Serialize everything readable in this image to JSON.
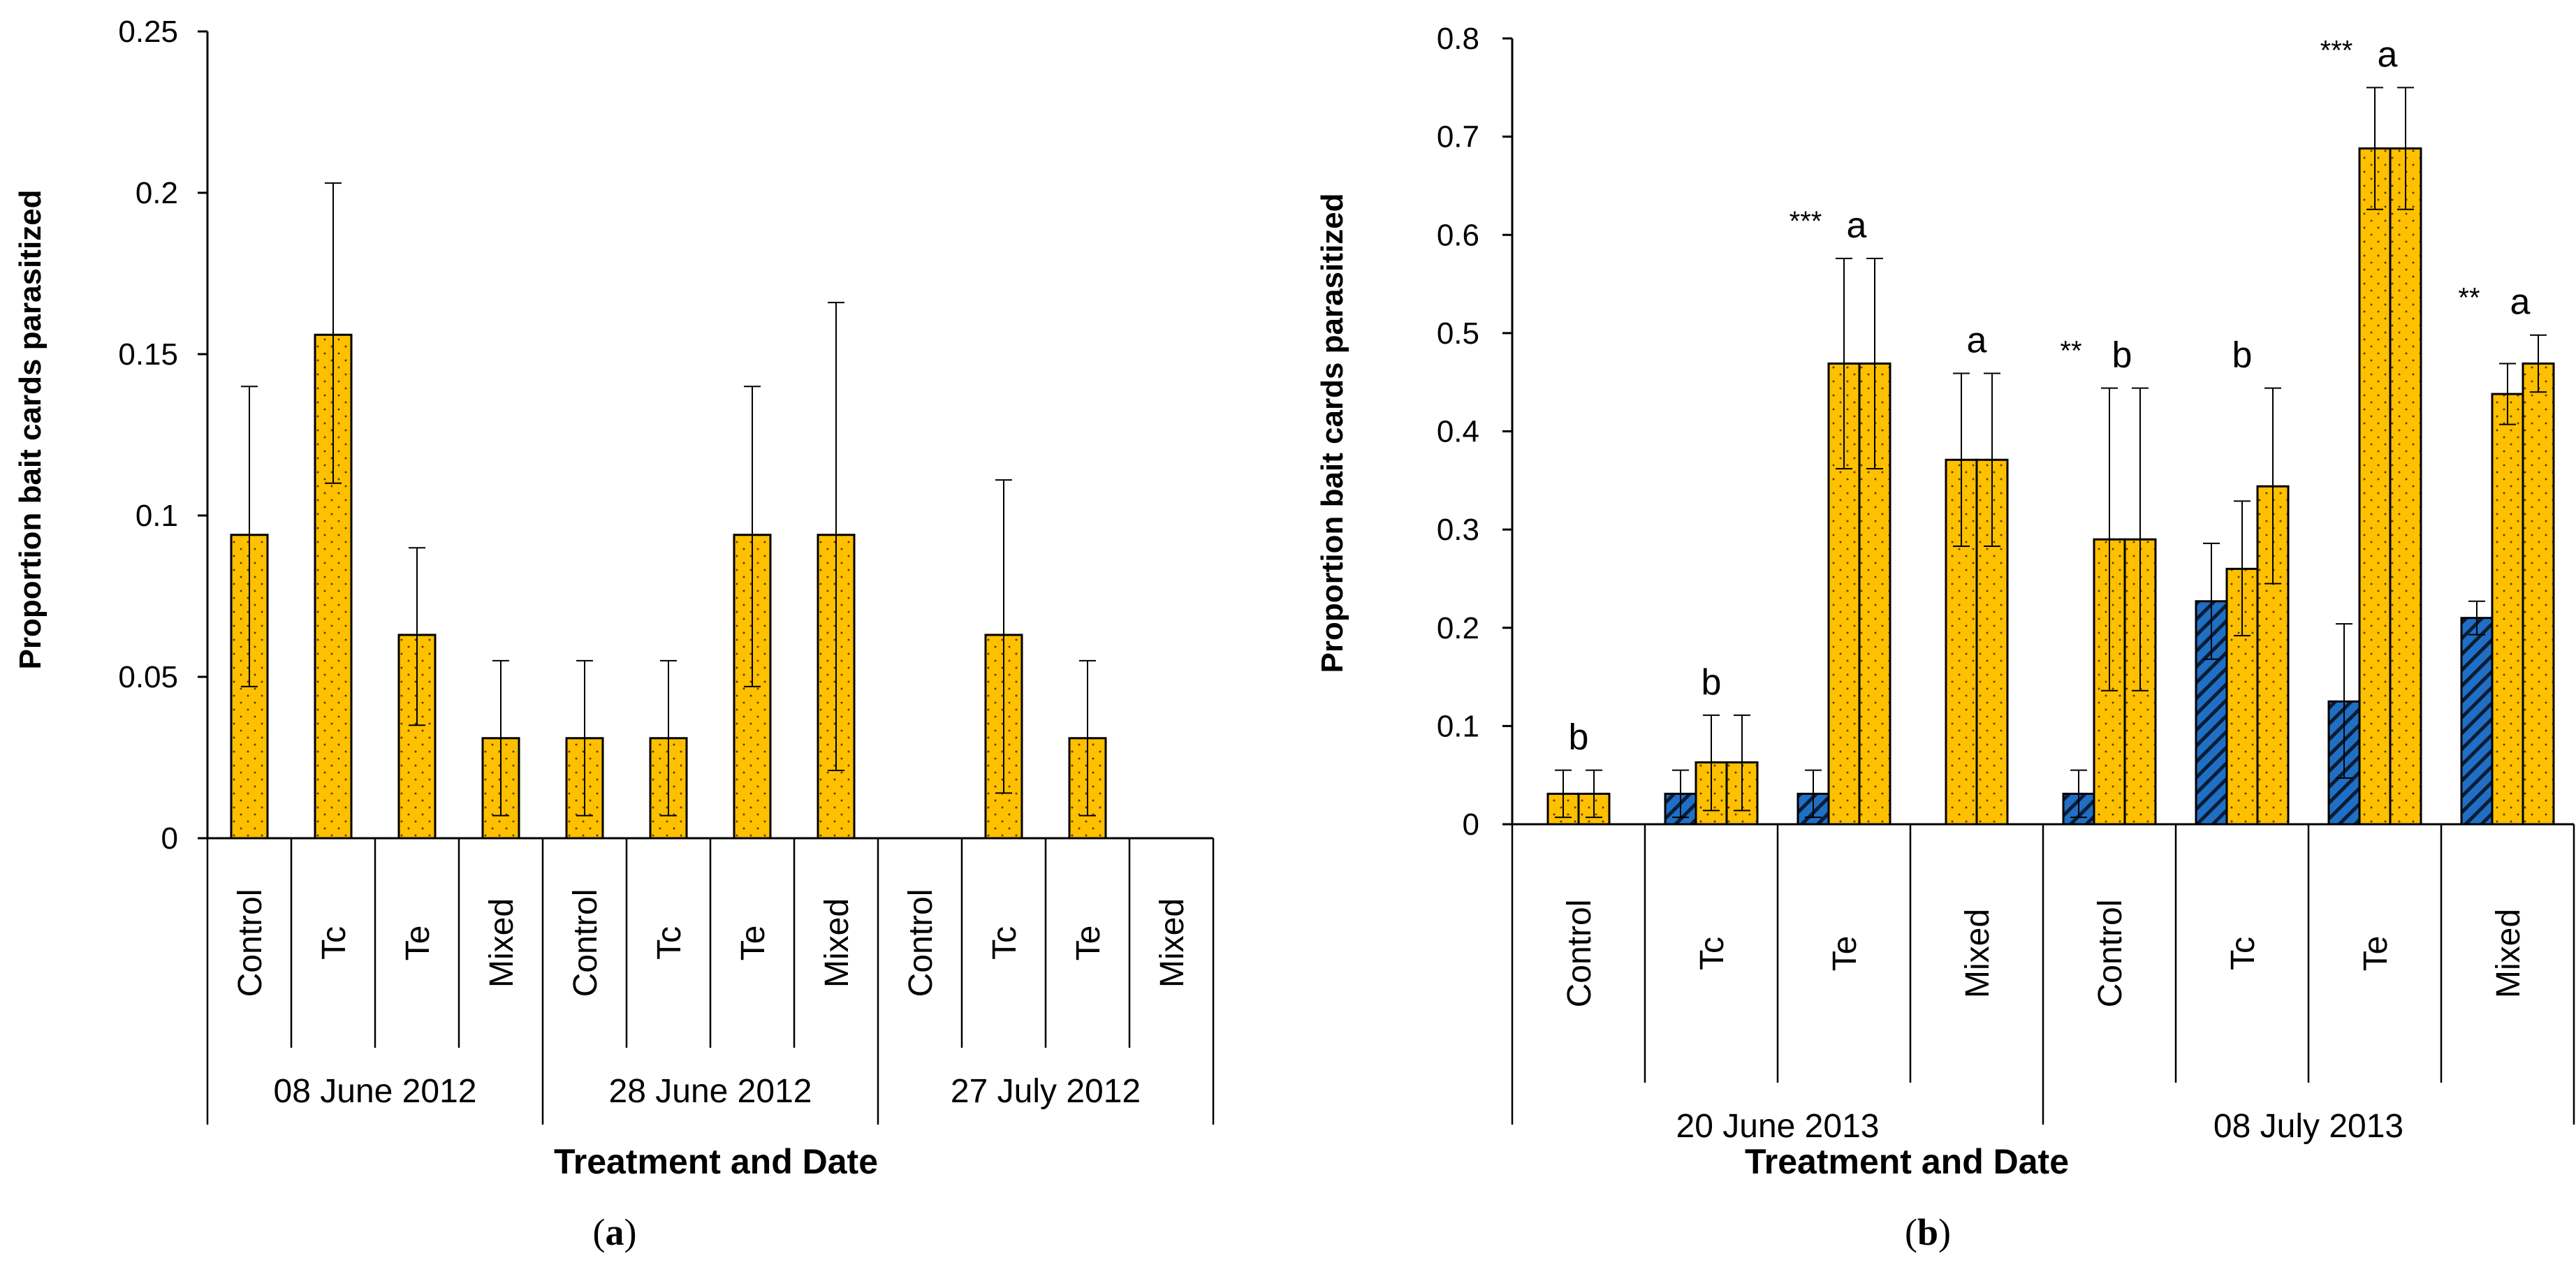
{
  "chart_data": [
    {
      "panel": "a",
      "type": "bar",
      "caption_letter": "a",
      "ylabel": "Proportion bait cards parasitized",
      "xlabel": "Treatment and Date",
      "ylim": [
        0,
        0.25
      ],
      "yticks": [
        "0",
        "0.05",
        "0.1",
        "0.15",
        "0.2",
        "0.25"
      ],
      "ytick_values": [
        0,
        0.05,
        0.1,
        0.15,
        0.2,
        0.25
      ],
      "groups": [
        {
          "label": "08 June 2012",
          "categories": [
            {
              "label": "Control",
              "bars": [
                {
                  "series": "orange",
                  "value": 0.094,
                  "err_low": 0.047,
                  "err_high": 0.14
                }
              ]
            },
            {
              "label": "Tc",
              "bars": [
                {
                  "series": "orange",
                  "value": 0.156,
                  "err_low": 0.11,
                  "err_high": 0.203
                }
              ]
            },
            {
              "label": "Te",
              "bars": [
                {
                  "series": "orange",
                  "value": 0.063,
                  "err_low": 0.035,
                  "err_high": 0.09
                }
              ]
            },
            {
              "label": "Mixed",
              "bars": [
                {
                  "series": "orange",
                  "value": 0.031,
                  "err_low": 0.007,
                  "err_high": 0.055
                }
              ]
            }
          ]
        },
        {
          "label": "28 June 2012",
          "categories": [
            {
              "label": "Control",
              "bars": [
                {
                  "series": "orange",
                  "value": 0.031,
                  "err_low": 0.007,
                  "err_high": 0.055
                }
              ]
            },
            {
              "label": "Tc",
              "bars": [
                {
                  "series": "orange",
                  "value": 0.031,
                  "err_low": 0.007,
                  "err_high": 0.055
                }
              ]
            },
            {
              "label": "Te",
              "bars": [
                {
                  "series": "orange",
                  "value": 0.094,
                  "err_low": 0.047,
                  "err_high": 0.14
                }
              ]
            },
            {
              "label": "Mixed",
              "bars": [
                {
                  "series": "orange",
                  "value": 0.094,
                  "err_low": 0.021,
                  "err_high": 0.166
                }
              ]
            }
          ]
        },
        {
          "label": "27 July 2012",
          "categories": [
            {
              "label": "Control",
              "bars": []
            },
            {
              "label": "Tc",
              "bars": [
                {
                  "series": "orange",
                  "value": 0.063,
                  "err_low": 0.014,
                  "err_high": 0.111
                }
              ]
            },
            {
              "label": "Te",
              "bars": [
                {
                  "series": "orange",
                  "value": 0.031,
                  "err_low": 0.007,
                  "err_high": 0.055
                }
              ]
            },
            {
              "label": "Mixed",
              "bars": []
            }
          ]
        }
      ]
    },
    {
      "panel": "b",
      "type": "bar",
      "caption_letter": "b",
      "ylabel": "Proportion bait cards  parasitized",
      "xlabel": "Treatment and Date",
      "ylim": [
        0,
        0.8
      ],
      "yticks": [
        "0",
        "0.1",
        "0.2",
        "0.3",
        "0.4",
        "0.5",
        "0.6",
        "0.7",
        "0.8"
      ],
      "ytick_values": [
        0,
        0.1,
        0.2,
        0.3,
        0.4,
        0.5,
        0.6,
        0.7,
        0.8
      ],
      "groups": [
        {
          "label": "20 June 2013",
          "categories": [
            {
              "label": "Control",
              "sig": "",
              "letter": "b",
              "bars": [
                {
                  "series": "orange",
                  "value": 0.031,
                  "err_low": 0.007,
                  "err_high": 0.055
                },
                {
                  "series": "orange",
                  "value": 0.031,
                  "err_low": 0.007,
                  "err_high": 0.055
                }
              ]
            },
            {
              "label": "Tc",
              "sig": "",
              "letter": "b",
              "bars": [
                {
                  "series": "blue",
                  "value": 0.031,
                  "err_low": 0.007,
                  "err_high": 0.055
                },
                {
                  "series": "orange",
                  "value": 0.063,
                  "err_low": 0.014,
                  "err_high": 0.111
                },
                {
                  "series": "orange",
                  "value": 0.063,
                  "err_low": 0.014,
                  "err_high": 0.111
                }
              ]
            },
            {
              "label": "Te",
              "sig": "***",
              "letter": "a",
              "bars": [
                {
                  "series": "blue",
                  "value": 0.031,
                  "err_low": 0.007,
                  "err_high": 0.055
                },
                {
                  "series": "orange",
                  "value": 0.469,
                  "err_low": 0.362,
                  "err_high": 0.576
                },
                {
                  "series": "orange",
                  "value": 0.469,
                  "err_low": 0.362,
                  "err_high": 0.576
                }
              ]
            },
            {
              "label": "Mixed",
              "sig": "",
              "letter": "a",
              "bars": [
                {
                  "series": "orange",
                  "value": 0.371,
                  "err_low": 0.283,
                  "err_high": 0.459
                },
                {
                  "series": "orange",
                  "value": 0.371,
                  "err_low": 0.283,
                  "err_high": 0.459
                }
              ]
            }
          ]
        },
        {
          "label": "08 July 2013",
          "categories": [
            {
              "label": "Control",
              "sig": "**",
              "letter": "b",
              "bars": [
                {
                  "series": "blue",
                  "value": 0.031,
                  "err_low": 0.007,
                  "err_high": 0.055
                },
                {
                  "series": "orange",
                  "value": 0.29,
                  "err_low": 0.136,
                  "err_high": 0.444
                },
                {
                  "series": "orange",
                  "value": 0.29,
                  "err_low": 0.136,
                  "err_high": 0.444
                }
              ]
            },
            {
              "label": "Tc",
              "sig": "",
              "letter": "b",
              "bars": [
                {
                  "series": "blue",
                  "value": 0.227,
                  "err_low": 0.168,
                  "err_high": 0.286
                },
                {
                  "series": "orange",
                  "value": 0.26,
                  "err_low": 0.192,
                  "err_high": 0.329
                },
                {
                  "series": "orange",
                  "value": 0.344,
                  "err_low": 0.245,
                  "err_high": 0.444
                }
              ]
            },
            {
              "label": "Te",
              "sig": "***",
              "letter": "a",
              "bars": [
                {
                  "series": "blue",
                  "value": 0.125,
                  "err_low": 0.047,
                  "err_high": 0.204
                },
                {
                  "series": "orange",
                  "value": 0.688,
                  "err_low": 0.626,
                  "err_high": 0.75
                },
                {
                  "series": "orange",
                  "value": 0.688,
                  "err_low": 0.626,
                  "err_high": 0.75
                }
              ]
            },
            {
              "label": "Mixed",
              "sig": "**",
              "letter": "a",
              "bars": [
                {
                  "series": "blue",
                  "value": 0.21,
                  "err_low": 0.193,
                  "err_high": 0.227
                },
                {
                  "series": "orange",
                  "value": 0.438,
                  "err_low": 0.407,
                  "err_high": 0.469
                },
                {
                  "series": "orange",
                  "value": 0.469,
                  "err_low": 0.44,
                  "err_high": 0.498
                }
              ]
            }
          ]
        }
      ]
    }
  ],
  "colors": {
    "orange": "#FFC000",
    "blue": "#1F6FC5",
    "axis": "#000000"
  }
}
